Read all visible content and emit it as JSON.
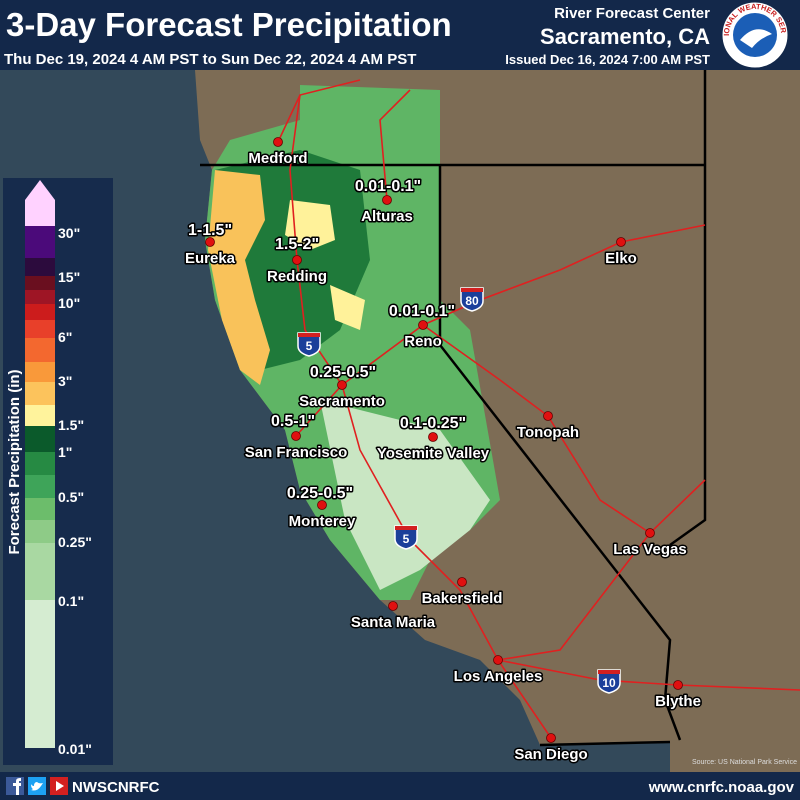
{
  "header": {
    "title": "3-Day Forecast Precipitation",
    "subtitle": "Thu Dec 19, 2024 4 AM PST to Sun Dec 22, 2024 4 AM PST",
    "issued": "Issued Dec 16, 2024 7:00 AM PST",
    "center": "River Forecast Center",
    "office": "Sacramento, CA",
    "logo_text": "NATIONAL WEATHER SERVICE"
  },
  "legend": {
    "title": "Forecast Precipitation (in)",
    "labels": [
      "30\"",
      "15\"",
      "10\"",
      "6\"",
      "3\"",
      "1.5\"",
      "1\"",
      "0.5\"",
      "0.25\"",
      "0.1\"",
      "0.01\""
    ]
  },
  "map": {
    "cities": [
      "Medford",
      "Alturas",
      "Eureka",
      "Redding",
      "Elko",
      "Reno",
      "Sacramento",
      "Tonopah",
      "San Francisco",
      "Yosemite Valley",
      "Monterey",
      "Las Vegas",
      "Bakersfield",
      "Santa Maria",
      "Los Angeles",
      "Blythe",
      "San Diego"
    ],
    "amounts": [
      "0.01-0.1\"",
      "1-1.5\"",
      "1.5-2\"",
      "0.01-0.1\"",
      "0.25-0.5\"",
      "0.5-1\"",
      "0.1-0.25\"",
      "0.25-0.5\""
    ],
    "highways": [
      "80",
      "5",
      "5",
      "10"
    ],
    "source": "Source: US National Park Service"
  },
  "footer": {
    "handle": "NWSCNRFC",
    "website": "www.cnrfc.noaa.gov"
  }
}
